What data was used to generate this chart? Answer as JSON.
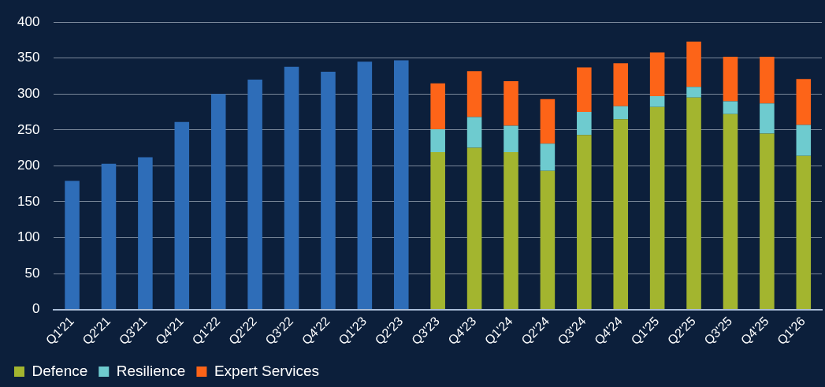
{
  "chart_data": {
    "type": "bar",
    "stacked": true,
    "categories": [
      "Q1'21",
      "Q2'21",
      "Q3'21",
      "Q4'21",
      "Q1'22",
      "Q2'22",
      "Q3'22",
      "Q4'22",
      "Q1'23",
      "Q2'23",
      "Q3'23",
      "Q4'23",
      "Q1'24",
      "Q2'24",
      "Q3'24",
      "Q4'24",
      "Q1'25",
      "Q2'25",
      "Q3'25",
      "Q4'25",
      "Q1'26"
    ],
    "series": [
      {
        "color": "#2e6db8",
        "values": [
          179,
          203,
          212,
          261,
          300,
          320,
          338,
          331,
          345,
          347,
          null,
          null,
          null,
          null,
          null,
          null,
          null,
          null,
          null,
          null,
          null
        ]
      },
      {
        "name": "Defence",
        "color": "#a3b52f",
        "values": [
          null,
          null,
          null,
          null,
          null,
          null,
          null,
          null,
          null,
          null,
          219,
          225,
          219,
          193,
          243,
          265,
          282,
          295,
          272,
          245,
          214
        ]
      },
      {
        "name": "Resilience",
        "color": "#6ecbcf",
        "values": [
          null,
          null,
          null,
          null,
          null,
          null,
          null,
          null,
          null,
          null,
          32,
          43,
          37,
          38,
          32,
          18,
          15,
          15,
          18,
          42,
          43
        ]
      },
      {
        "name": "Expert Services",
        "color": "#fd6418",
        "values": [
          null,
          null,
          null,
          null,
          null,
          null,
          null,
          null,
          null,
          null,
          64,
          64,
          62,
          62,
          62,
          60,
          61,
          63,
          62,
          65,
          64
        ]
      }
    ],
    "ylim": [
      0,
      400
    ],
    "yticks": [
      0,
      50,
      100,
      150,
      200,
      250,
      300,
      350,
      400
    ],
    "grid": "y",
    "legend": "bottom left"
  }
}
